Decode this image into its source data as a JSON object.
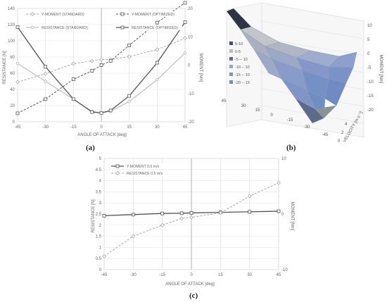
{
  "chart_data": [
    {
      "id": "a",
      "type": "line",
      "x": [
        -45,
        -30,
        -15,
        -5,
        0,
        5,
        15,
        30,
        45
      ],
      "xlabel": "ANGLE OF ATTACK [deg]",
      "ylabel": "RESISTANCE [N]",
      "y2label": "MOMENT [Nm]",
      "xticks": [
        "-45",
        "-30",
        "-15",
        "0",
        "15",
        "30",
        "45"
      ],
      "yticks": [
        "0",
        "20",
        "40",
        "60",
        "80",
        "100",
        "120",
        "140"
      ],
      "y2ticks": [
        "20",
        "10",
        "0",
        "-10",
        "-20"
      ],
      "ylim": [
        0,
        140
      ],
      "y2lim": [
        -20,
        20
      ],
      "grid": true,
      "legend_position": "top",
      "series": [
        {
          "name": "Y-MOMENT (STANDARD)",
          "axis": "right",
          "style": "dashed-light",
          "values": [
            -6,
            -3,
            0.5,
            1.5,
            2,
            2,
            3,
            5.5,
            9.5
          ]
        },
        {
          "name": "Y-MOMENT (OPTIMIZED)",
          "axis": "right",
          "style": "dashed-dark",
          "values": [
            -17,
            -12,
            -5,
            -2,
            0,
            1.5,
            7,
            15,
            22
          ]
        },
        {
          "name": "RESISTANCE (STANDARD)",
          "axis": "left",
          "style": "solid-light",
          "values": [
            72,
            50,
            28,
            13,
            11,
            13,
            25,
            52,
            85
          ]
        },
        {
          "name": "RESISTANCE (OPTIMIZED)",
          "axis": "left",
          "style": "solid-dark",
          "values": [
            117,
            68,
            28,
            12,
            11,
            14,
            32,
            73,
            123
          ]
        }
      ]
    },
    {
      "id": "b",
      "type": "surface",
      "zlabel": "MOMENT [Nm]",
      "ylabel": "VELOCITY [m s⁻¹]",
      "zticks": [
        "10",
        "5",
        "0",
        "-5",
        "-10",
        "-15",
        "-20"
      ],
      "angle_ticks": [
        "45",
        "30",
        "15",
        "0",
        "-15",
        "-30",
        "-45"
      ],
      "velocity_ticks": [
        "0",
        "2",
        "4"
      ],
      "legend": [
        {
          "label": "5-10",
          "color": "#474f5c"
        },
        {
          "label": "0-5",
          "color": "#b9bcc4"
        },
        {
          "label": "-5 -- 10",
          "color": "#5d6a88"
        },
        {
          "label": "-10 -- 10",
          "color": "#96a6cf"
        },
        {
          "label": "-15 -- 10",
          "color": "#7f95c8"
        },
        {
          "label": "-20 -- 15",
          "color": "#6e8fc0"
        }
      ]
    },
    {
      "id": "c",
      "type": "line",
      "x": [
        -45,
        -30,
        -15,
        -5,
        0,
        15,
        30,
        45
      ],
      "xlabel": "ANGLE OF ATTACK [deg]",
      "ylabel": "RESISTANCE [N]",
      "y2label": "MOMENT [Nm]",
      "xticks": [
        "-45",
        "-30",
        "-15",
        "0",
        "15",
        "30",
        "45"
      ],
      "yticks": [
        "0",
        "0.5",
        "1",
        "1.5",
        "2",
        "2.5",
        "3",
        "3.5",
        "4",
        "4.5",
        "5"
      ],
      "y2ticks": [
        "10",
        "0",
        "-10"
      ],
      "ylim": [
        0,
        5
      ],
      "y2lim": [
        -10,
        10
      ],
      "grid": true,
      "legend_position": "top-left",
      "series": [
        {
          "name": "Y-MOMENT 0.5 m/s",
          "axis": "right",
          "style": "solid-dark",
          "values": [
            -0.3,
            -0.1,
            0.1,
            0.15,
            0.2,
            0.3,
            0.4,
            0.5
          ]
        },
        {
          "name": "RESISTANCE 0.5 m/s",
          "axis": "left",
          "style": "dashed-light",
          "values": [
            0.6,
            1.5,
            2.0,
            2.3,
            2.35,
            2.55,
            3.3,
            3.9
          ]
        }
      ]
    }
  ],
  "captions": {
    "a": "(a)",
    "b": "(b)",
    "c": "(c)"
  }
}
